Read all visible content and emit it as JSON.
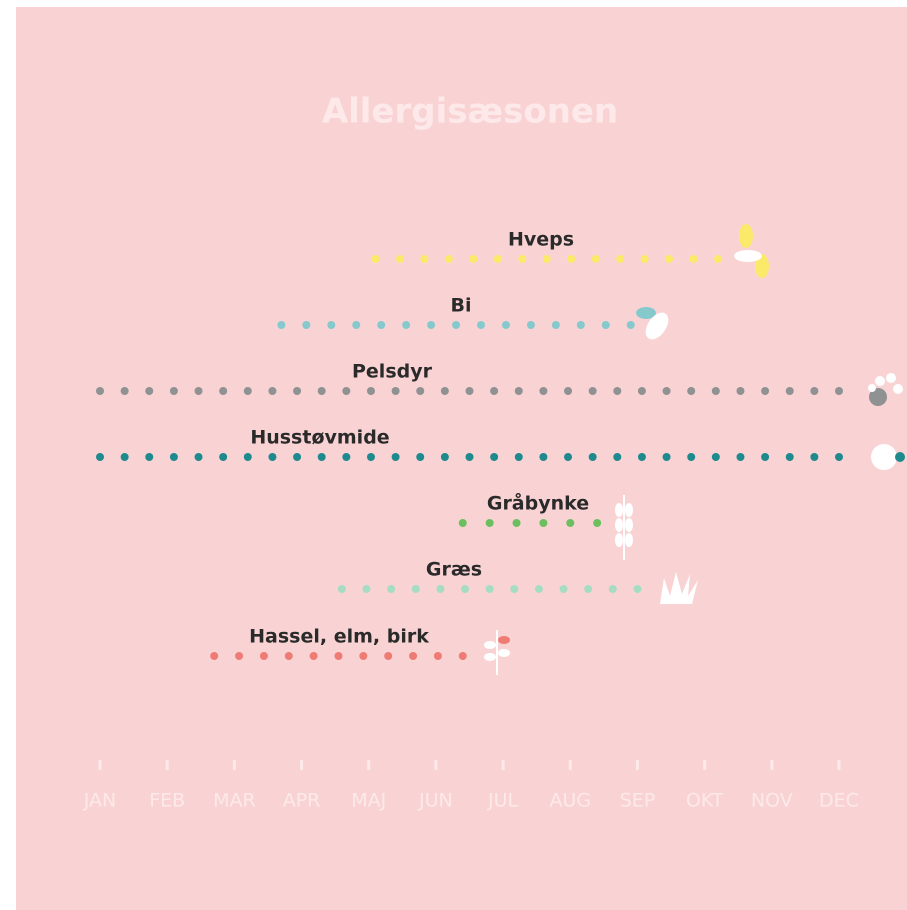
{
  "chart_data": {
    "type": "season-timeline",
    "title": "Allergisæsonen",
    "categories": [
      "JAN",
      "FEB",
      "MAR",
      "APR",
      "MAJ",
      "JUN",
      "JUL",
      "AUG",
      "SEP",
      "OKT",
      "NOV",
      "DEC"
    ],
    "xlim": [
      1,
      12
    ],
    "series": [
      {
        "name": "Hveps",
        "color": "#fbe96a",
        "start": 5.1,
        "end": 10.2
      },
      {
        "name": "Bi",
        "color": "#86c9cc",
        "start": 3.7,
        "end": 8.9
      },
      {
        "name": "Pelsdyr",
        "color": "#8f9192",
        "start": 1,
        "end": 12
      },
      {
        "name": "Husstøvmide",
        "color": "#1f8a8e",
        "start": 1,
        "end": 12
      },
      {
        "name": "Gråbynke",
        "color": "#6cbf5f",
        "start": 6.4,
        "end": 8.4
      },
      {
        "name": "Græs",
        "color": "#a6dcc3",
        "start": 4.6,
        "end": 9
      },
      {
        "name": "Hassel, elm, birk",
        "color": "#ee7b74",
        "start": 2.7,
        "end": 6.4
      }
    ]
  }
}
